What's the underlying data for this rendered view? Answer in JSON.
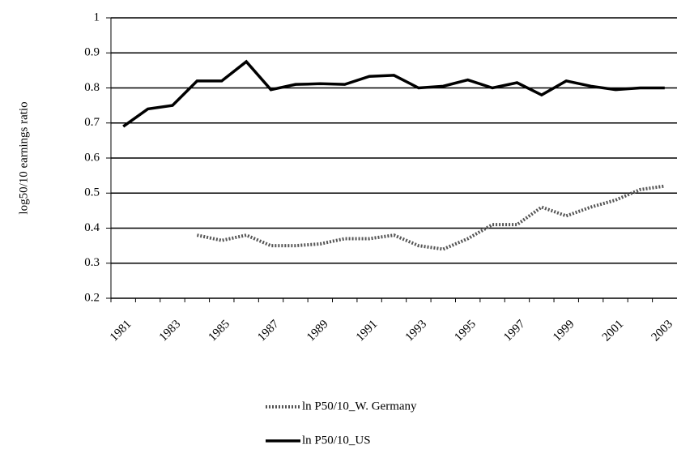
{
  "chart_data": {
    "type": "line",
    "y_label": "log50/10 earnings ratio",
    "categories": [
      "1981",
      null,
      "1983",
      null,
      "1985",
      null,
      "1987",
      null,
      "1989",
      null,
      "1991",
      null,
      "1993",
      null,
      "1995",
      null,
      "1997",
      null,
      "1999",
      null,
      "2001",
      null,
      "2003"
    ],
    "series": [
      {
        "name": "ln P50/10_W. Germany",
        "color": "#555555",
        "dashed": true,
        "values": [
          null,
          null,
          null,
          0.38,
          0.365,
          0.38,
          0.35,
          0.35,
          0.355,
          0.37,
          0.37,
          0.38,
          0.35,
          0.34,
          0.37,
          0.41,
          0.41,
          0.46,
          0.435,
          0.46,
          0.48,
          0.51,
          0.52
        ]
      },
      {
        "name": "ln P50/10_US",
        "color": "#000000",
        "dashed": false,
        "values": [
          0.69,
          0.74,
          0.75,
          0.82,
          0.82,
          0.875,
          0.795,
          0.81,
          0.812,
          0.81,
          0.833,
          0.836,
          0.8,
          0.805,
          0.823,
          0.8,
          0.815,
          0.78,
          0.82,
          0.805,
          0.795,
          0.8,
          0.8
        ]
      }
    ],
    "ylim": [
      0.2,
      1
    ],
    "yticks": [
      0.2,
      0.3,
      0.4,
      0.5,
      0.6,
      0.7,
      0.8,
      0.9,
      1
    ],
    "grid": true
  }
}
